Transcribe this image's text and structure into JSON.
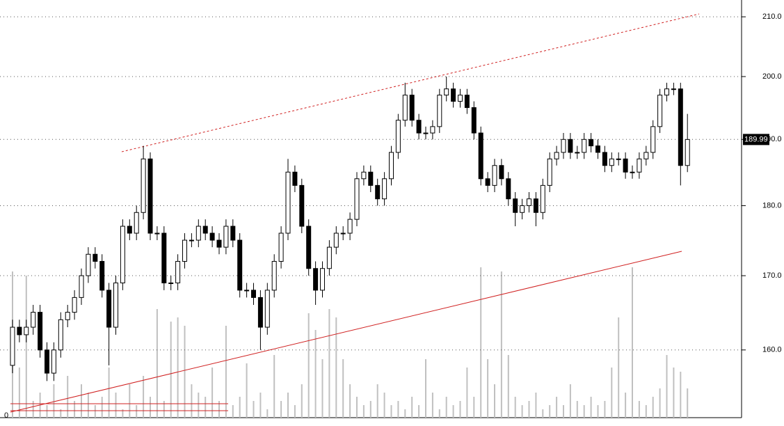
{
  "chart_data": {
    "type": "candlestick",
    "yscale": "log",
    "ylim": [
      151.4,
      212.9
    ],
    "yticks": [
      {
        "value": 160,
        "label": "160.0"
      },
      {
        "value": 170,
        "label": "170.0"
      },
      {
        "value": 180,
        "label": "180.0"
      },
      {
        "value": 190,
        "label": "190.0"
      },
      {
        "value": 200,
        "label": "200.0"
      },
      {
        "value": 210,
        "label": "210.0"
      }
    ],
    "grid": true,
    "up_color": "#ffffff",
    "down_color": "#000000",
    "volume_color": "#c0c0c0",
    "last_price_label": "189.99",
    "volume_axis_label": "0",
    "y2lim": [
      0,
      100
    ],
    "open": [
      158,
      163,
      162,
      163,
      165,
      160,
      157,
      160,
      164,
      165,
      167,
      170,
      173,
      172,
      168,
      163,
      169,
      177,
      176,
      179,
      187,
      176,
      176,
      169,
      169,
      172,
      175,
      175,
      177,
      176,
      175,
      174,
      177,
      175,
      168,
      168,
      167,
      163,
      168,
      172,
      176,
      185,
      183,
      177,
      171,
      168,
      171,
      174,
      176,
      176,
      178,
      184,
      185,
      183,
      181,
      184,
      188,
      193,
      197,
      193,
      191,
      191,
      192,
      197,
      198,
      196,
      197,
      195,
      191,
      184,
      183,
      186,
      184,
      181,
      179,
      180,
      181,
      179,
      183,
      187,
      188,
      190,
      188,
      188,
      190,
      189,
      188,
      186,
      187,
      187,
      185,
      185,
      187,
      188,
      192,
      197,
      198,
      198,
      186
    ],
    "high": [
      164,
      164,
      164,
      166,
      166,
      161,
      161,
      165,
      166,
      168,
      171,
      174,
      174,
      173,
      169,
      170,
      178,
      178,
      180,
      189,
      188,
      177,
      177,
      170,
      173,
      176,
      176,
      178,
      178,
      177,
      176,
      178,
      178,
      176,
      169,
      169,
      168,
      169,
      173,
      177,
      187,
      186,
      184,
      178,
      172,
      172,
      175,
      177,
      177,
      179,
      185,
      186,
      186,
      184,
      185,
      189,
      194,
      199,
      198,
      194,
      192,
      193,
      198,
      200,
      199,
      198,
      198,
      196,
      192,
      185,
      187,
      187,
      185,
      182,
      181,
      182,
      182,
      184,
      188,
      189,
      191,
      191,
      189,
      191,
      191,
      190,
      189,
      188,
      188,
      188,
      186,
      188,
      189,
      193,
      198,
      199,
      199,
      199,
      194
    ],
    "low": [
      157,
      161,
      161,
      162,
      159,
      156,
      156,
      159,
      163,
      164,
      166,
      169,
      171,
      167,
      158,
      162,
      168,
      175,
      175,
      178,
      175,
      175,
      168,
      168,
      168,
      171,
      174,
      174,
      175,
      174,
      173,
      173,
      174,
      167,
      167,
      166,
      160,
      162,
      167,
      171,
      175,
      182,
      176,
      170,
      166,
      167,
      170,
      173,
      175,
      175,
      177,
      183,
      182,
      180,
      180,
      183,
      187,
      192,
      192,
      190,
      190,
      190,
      191,
      196,
      195,
      195,
      194,
      190,
      183,
      182,
      182,
      183,
      180,
      177,
      178,
      179,
      177,
      178,
      182,
      186,
      187,
      187,
      187,
      187,
      188,
      187,
      185,
      185,
      186,
      184,
      184,
      184,
      186,
      187,
      191,
      196,
      197,
      183,
      185
    ],
    "close": [
      163,
      162,
      163,
      165,
      160,
      157,
      160,
      164,
      165,
      167,
      170,
      173,
      172,
      168,
      163,
      169,
      177,
      176,
      179,
      187,
      176,
      176,
      169,
      169,
      172,
      175,
      175,
      177,
      176,
      175,
      174,
      177,
      175,
      168,
      168,
      167,
      163,
      168,
      172,
      176,
      185,
      183,
      177,
      171,
      168,
      171,
      174,
      176,
      176,
      178,
      184,
      185,
      183,
      181,
      184,
      188,
      193,
      197,
      193,
      191,
      191,
      192,
      197,
      198,
      196,
      197,
      195,
      191,
      184,
      183,
      186,
      184,
      181,
      179,
      180,
      181,
      179,
      183,
      187,
      188,
      190,
      188,
      188,
      190,
      189,
      188,
      186,
      187,
      187,
      185,
      185,
      187,
      188,
      192,
      197,
      198,
      198,
      186,
      189.99
    ],
    "volume": [
      35,
      12,
      34,
      4,
      6,
      3,
      8,
      2,
      10,
      4,
      8,
      6,
      3,
      5,
      12,
      6,
      2,
      8,
      3,
      10,
      5,
      26,
      4,
      23,
      24,
      22,
      8,
      6,
      5,
      12,
      4,
      22,
      3,
      5,
      13,
      4,
      6,
      2,
      15,
      4,
      6,
      3,
      8,
      25,
      21,
      14,
      26,
      24,
      14,
      8,
      5,
      3,
      4,
      8,
      6,
      3,
      4,
      2,
      5,
      3,
      14,
      6,
      2,
      5,
      3,
      4,
      12,
      5,
      36,
      14,
      8,
      35,
      15,
      5,
      3,
      4,
      6,
      2,
      3,
      5,
      3,
      8,
      4,
      3,
      5,
      3,
      4,
      12,
      24,
      6,
      36,
      4,
      3,
      5,
      7,
      15,
      12,
      11,
      7
    ]
  }
}
